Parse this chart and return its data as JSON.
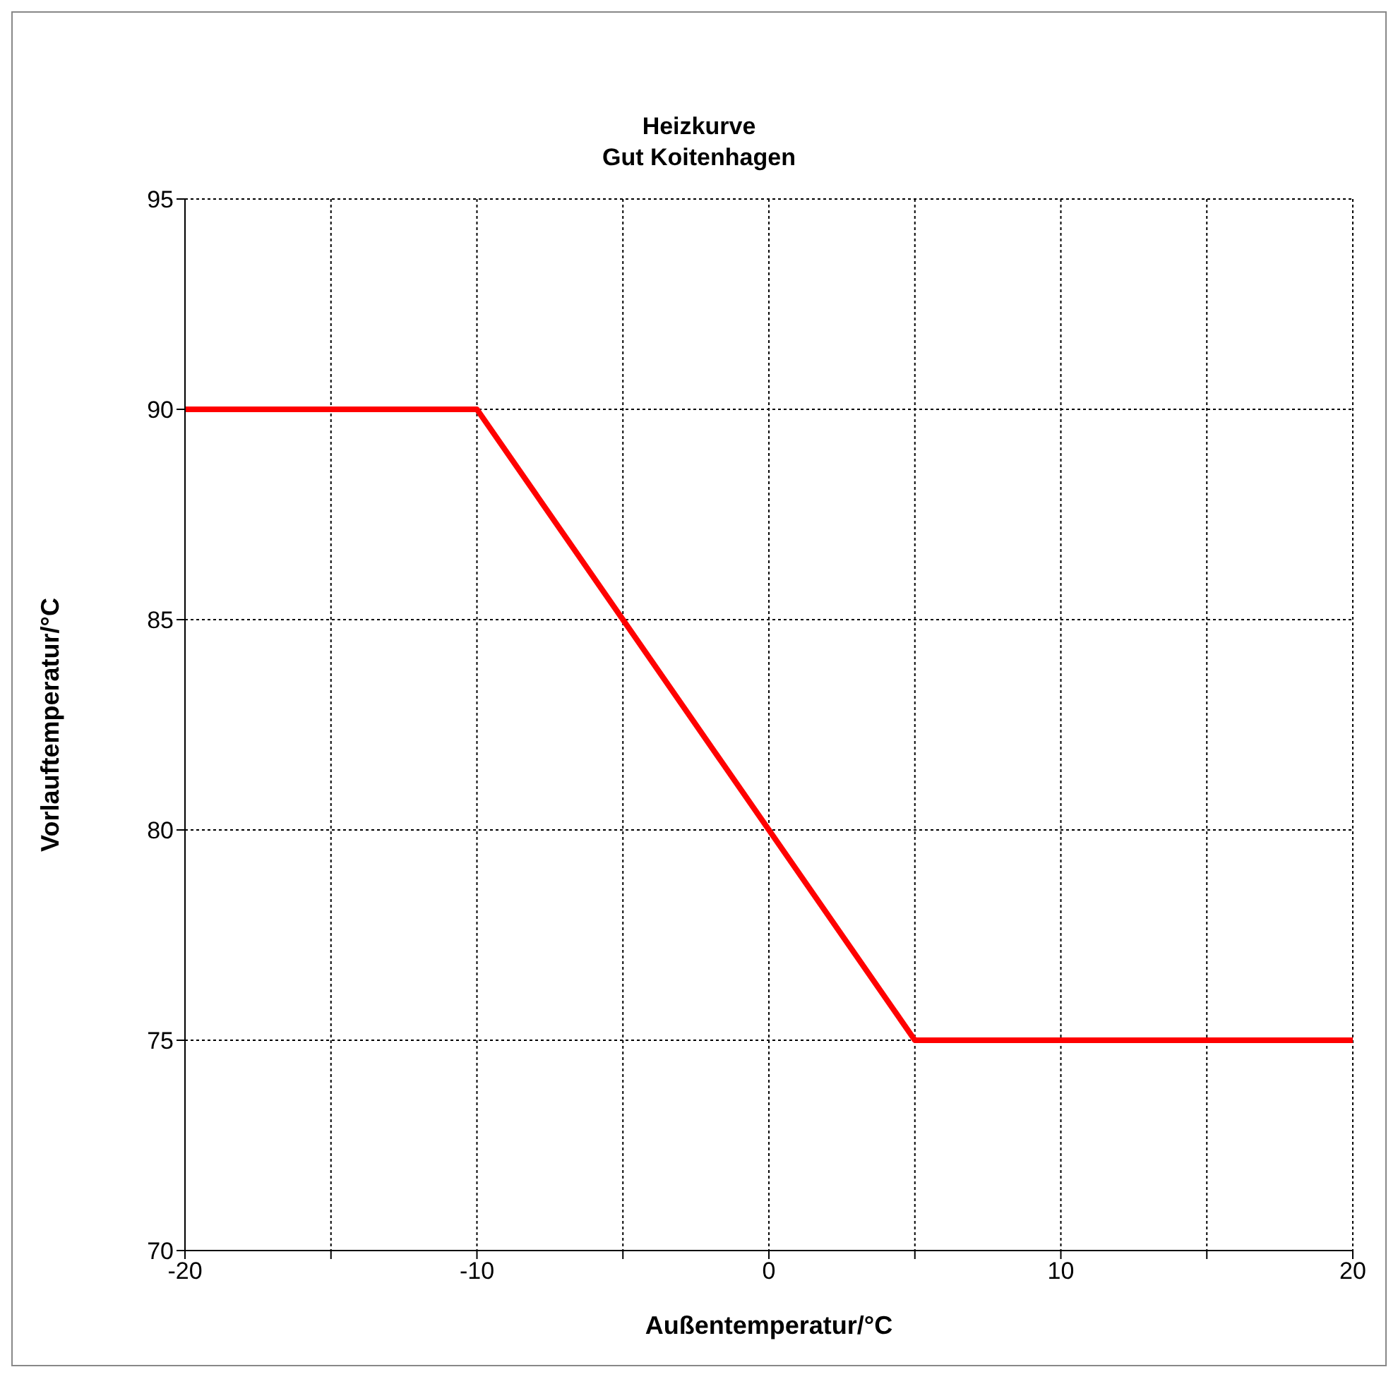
{
  "chart_data": {
    "type": "line",
    "title": "Heizkurve\nGut Koitenhagen",
    "xlabel": "Außentemperatur/°C",
    "ylabel": "Vorlauftemperatur/°C",
    "x": [
      -20,
      -10,
      5,
      20
    ],
    "series": [
      {
        "color": "#ff0000",
        "values": [
          90,
          90,
          75,
          75
        ]
      }
    ],
    "xlim": [
      -20,
      20
    ],
    "xticks": [
      -20,
      {
        "value": -15,
        "label": null
      },
      -10,
      {
        "value": -5,
        "label": null
      },
      0,
      {
        "value": 5,
        "label": null
      },
      10,
      {
        "value": 15,
        "label": null
      },
      20
    ],
    "ylim": [
      70,
      95
    ],
    "yticks": [
      70,
      75,
      80,
      85,
      90,
      95
    ],
    "grid": true,
    "marker": "none",
    "line_style": "solid"
  }
}
